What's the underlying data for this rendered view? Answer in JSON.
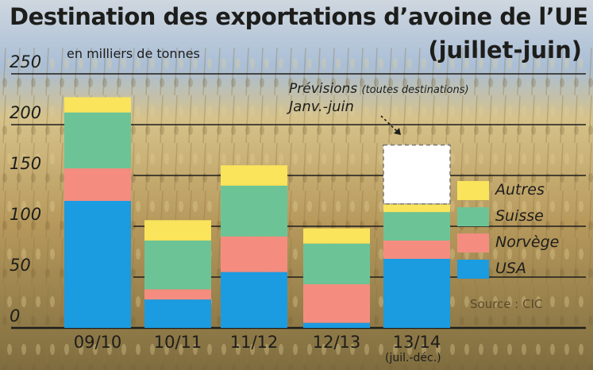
{
  "header": {
    "title": "Destination des exportations d’avoine de l’UE",
    "period": "(juillet-juin)",
    "unit": "en milliers de tonnes"
  },
  "annotation": {
    "forecast": "Prévisions",
    "forecast_scope": "(toutes destinations)",
    "forecast_period": "Janv.-juin"
  },
  "source": "Source : CIC",
  "category_note": "(juil.-déc.)",
  "colors": {
    "usa": "#1b9be0",
    "norvege": "#f48d80",
    "suisse": "#6cc496",
    "autres": "#f9e45b",
    "forecast": "#ffffff",
    "background_sky": "#9cb6d4",
    "background_field": "#b59a63"
  },
  "chart_data": {
    "type": "bar",
    "stacked": true,
    "title": "Destination des exportations d’avoine de l’UE",
    "ylabel": "en milliers de tonnes",
    "ylim": [
      0,
      250
    ],
    "yticks": [
      0,
      50,
      100,
      150,
      200,
      250
    ],
    "categories": [
      "09/10",
      "10/11",
      "11/12",
      "12/13",
      "13/14"
    ],
    "series": [
      {
        "name": "USA",
        "values": [
          125,
          28,
          55,
          5,
          68
        ]
      },
      {
        "name": "Norvège",
        "values": [
          32,
          10,
          35,
          38,
          18
        ]
      },
      {
        "name": "Suisse",
        "values": [
          55,
          48,
          50,
          40,
          28
        ]
      },
      {
        "name": "Autres",
        "values": [
          15,
          20,
          20,
          15,
          8
        ]
      }
    ],
    "forecast": {
      "category": "13/14",
      "label": "Prévisions (toutes destinations) Janv.-juin",
      "from": 122,
      "to": 180
    },
    "legend_position": "right",
    "grid": true
  }
}
